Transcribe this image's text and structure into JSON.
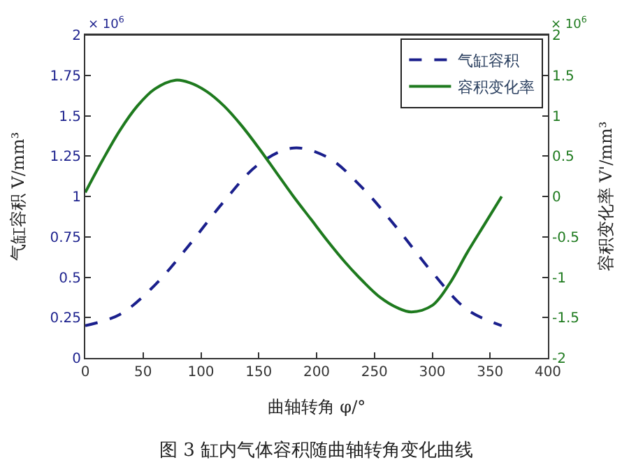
{
  "chart_data": {
    "type": "line",
    "xlabel": "曲轴转角 φ/°",
    "ylabel": "气缸容积 V/mm³",
    "y2label": "容积变化率 V'/mm³",
    "annotations": [
      "× 10$^{6}$",
      "× 10$^{6}$",
      "图 3 缸内气体容积随曲轴转角变化曲线"
    ],
    "series": [
      {
        "name": "气缸容积",
        "color": "#1a1f8c",
        "line_style": "dashed",
        "x": [
          0,
          30,
          60,
          90,
          120,
          150,
          180,
          210,
          240,
          270,
          300,
          330,
          360
        ],
        "values": [
          0.2,
          0.27,
          0.45,
          0.7,
          0.97,
          1.2,
          1.3,
          1.24,
          1.05,
          0.8,
          0.53,
          0.3,
          0.2
        ]
      },
      {
        "name": "容积变化率",
        "color": "#1e7a1e",
        "line_style": "solid",
        "axis": "y2",
        "x": [
          0,
          15,
          30,
          45,
          60,
          78,
          90,
          105,
          120,
          135,
          150,
          165,
          180,
          195,
          210,
          225,
          240,
          255,
          270,
          282,
          300,
          315,
          330,
          345,
          360
        ],
        "values": [
          0.05,
          0.45,
          0.82,
          1.12,
          1.33,
          1.44,
          1.41,
          1.3,
          1.12,
          0.88,
          0.6,
          0.3,
          0.0,
          -0.28,
          -0.56,
          -0.82,
          -1.05,
          -1.25,
          -1.38,
          -1.43,
          -1.35,
          -1.08,
          -0.7,
          -0.35,
          0
        ]
      }
    ],
    "xlim": [
      0,
      400
    ],
    "xticks": [
      0,
      50,
      100,
      150,
      200,
      250,
      300,
      350,
      400
    ],
    "ylim": [
      0,
      2
    ],
    "yticks": [
      0,
      0.25,
      0.5,
      0.75,
      1,
      1.25,
      1.5,
      1.75,
      2
    ],
    "y2lim": [
      -2,
      2
    ],
    "y2ticks": [
      -2,
      -1.5,
      -1,
      -0.5,
      0,
      0.5,
      1,
      1.5,
      2
    ],
    "legend": "top right"
  }
}
